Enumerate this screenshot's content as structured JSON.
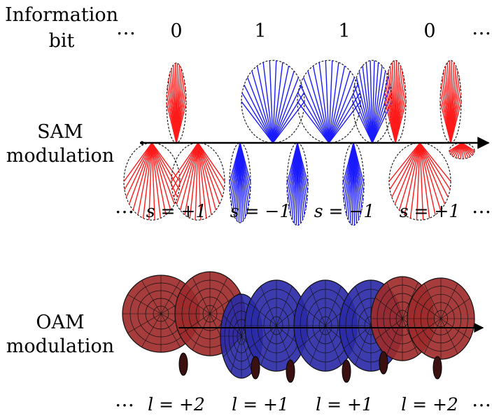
{
  "header": {
    "label_line1": "Information",
    "label_line2": "bit",
    "ellipsis": "…",
    "bits": [
      "0",
      "1",
      "1",
      "0"
    ]
  },
  "sam": {
    "label_line1": "SAM",
    "label_line2": "modulation",
    "states": [
      "s = +1",
      "s = −1",
      "s = −1",
      "s = +1"
    ],
    "ellipsis": "…"
  },
  "oam": {
    "label_line1": "OAM",
    "label_line2": "modulation",
    "states": [
      "l = +2",
      "l = +1",
      "l = +1",
      "l = +2"
    ],
    "ellipsis": "…"
  },
  "colors": {
    "bit0": "#ff1a1a",
    "bit1": "#1a1aff",
    "oam_bit0": "#9e2b2b",
    "oam_bit1": "#2b2ba8",
    "axis": "#000000"
  }
}
